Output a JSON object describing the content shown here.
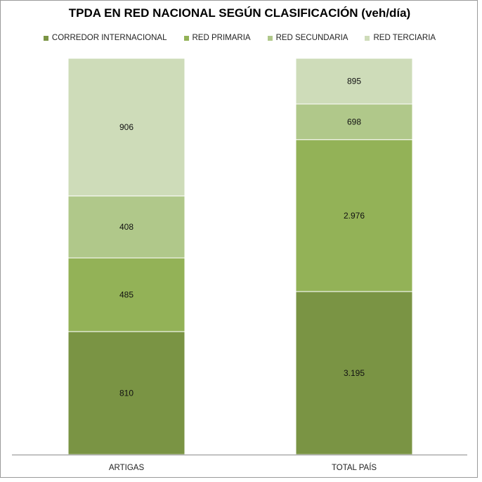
{
  "chart_data": {
    "type": "stacked-bar",
    "title": "TPDA EN RED NACIONAL SEGÚN CLASIFICACIÓN (veh/día)",
    "legend_position": "top",
    "categories": [
      "ARTIGAS",
      "TOTAL PAÍS"
    ],
    "series": [
      {
        "name": "CORREDOR INTERNACIONAL",
        "color": "#7a9444",
        "values": [
          810,
          3195
        ],
        "labels": [
          "810",
          "3.195"
        ]
      },
      {
        "name": "RED PRIMARIA",
        "color": "#93b257",
        "values": [
          485,
          2976
        ],
        "labels": [
          "485",
          "2.976"
        ]
      },
      {
        "name": "RED SECUNDARIA",
        "color": "#b0c88a",
        "values": [
          408,
          698
        ],
        "labels": [
          "408",
          "698"
        ]
      },
      {
        "name": "RED TERCIARIA",
        "color": "#cedcb9",
        "values": [
          906,
          895
        ],
        "labels": [
          "906",
          "895"
        ]
      }
    ],
    "normalized": true,
    "gridlines": false
  }
}
